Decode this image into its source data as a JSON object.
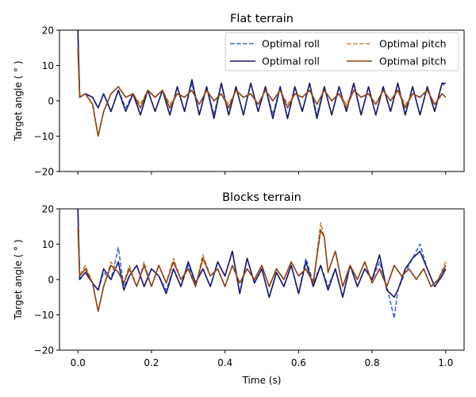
{
  "chart_data": [
    {
      "type": "line",
      "title": "Flat terrain",
      "xlabel": "",
      "ylabel": "Target angle ( ° )",
      "xlim": [
        -0.05,
        1.05
      ],
      "ylim": [
        -20,
        20
      ],
      "xticks": [
        0.0,
        0.2,
        0.4,
        0.6,
        0.8,
        1.0
      ],
      "xtick_labels": [],
      "yticks": [
        -20,
        -10,
        0,
        10,
        20
      ],
      "ytick_labels": [
        "−20",
        "−10",
        "0",
        "10",
        "20"
      ],
      "legend": {
        "position": "top-right",
        "columns": 2
      },
      "series": [
        {
          "name": "Optimal roll",
          "style": "dashed",
          "color": "#4169e1",
          "x": [
            0,
            0.005,
            0.02,
            0.04,
            0.055,
            0.07,
            0.09,
            0.11,
            0.13,
            0.15,
            0.17,
            0.19,
            0.21,
            0.23,
            0.25,
            0.27,
            0.29,
            0.31,
            0.33,
            0.35,
            0.37,
            0.39,
            0.41,
            0.43,
            0.45,
            0.47,
            0.49,
            0.51,
            0.53,
            0.55,
            0.57,
            0.59,
            0.61,
            0.63,
            0.65,
            0.67,
            0.69,
            0.71,
            0.73,
            0.75,
            0.77,
            0.79,
            0.81,
            0.83,
            0.85,
            0.87,
            0.89,
            0.91,
            0.93,
            0.95,
            0.97,
            0.99,
            1.0
          ],
          "y": [
            19,
            1,
            2,
            1,
            -2,
            2,
            -3,
            3,
            -2,
            2,
            -4,
            3,
            -3,
            3,
            -4,
            4,
            -3,
            5,
            -4,
            4,
            -4,
            5,
            -4,
            4,
            -4,
            5,
            -3,
            4,
            -4,
            4,
            -5,
            4,
            -3,
            5,
            -4,
            4,
            -4,
            4,
            -3,
            5,
            -4,
            4,
            -4,
            4,
            -3,
            5,
            -4,
            4,
            -4,
            4,
            -3,
            5,
            4
          ]
        },
        {
          "name": "Optimal roll",
          "style": "solid",
          "color": "#191970",
          "x": [
            0,
            0.005,
            0.02,
            0.04,
            0.055,
            0.07,
            0.09,
            0.11,
            0.13,
            0.15,
            0.17,
            0.19,
            0.21,
            0.23,
            0.25,
            0.27,
            0.29,
            0.31,
            0.33,
            0.35,
            0.37,
            0.39,
            0.41,
            0.43,
            0.45,
            0.47,
            0.49,
            0.51,
            0.53,
            0.55,
            0.57,
            0.59,
            0.61,
            0.63,
            0.65,
            0.67,
            0.69,
            0.71,
            0.73,
            0.75,
            0.77,
            0.79,
            0.81,
            0.83,
            0.85,
            0.87,
            0.89,
            0.91,
            0.93,
            0.95,
            0.97,
            0.99,
            1.0
          ],
          "y": [
            20,
            1,
            2,
            1,
            -2,
            2,
            -3,
            3,
            -3,
            2,
            -4,
            3,
            -3,
            3,
            -4,
            4,
            -3,
            6,
            -4,
            4,
            -5,
            5,
            -4,
            4,
            -4,
            5,
            -3,
            4,
            -5,
            4,
            -5,
            4,
            -3,
            5,
            -5,
            4,
            -4,
            4,
            -3,
            5,
            -4,
            4,
            -4,
            4,
            -3,
            5,
            -4,
            4,
            -4,
            4,
            -3,
            5,
            5
          ]
        },
        {
          "name": "Optimal pitch",
          "style": "dashed",
          "color": "#cd853f",
          "x": [
            0,
            0.005,
            0.02,
            0.04,
            0.055,
            0.07,
            0.09,
            0.11,
            0.13,
            0.15,
            0.17,
            0.19,
            0.21,
            0.23,
            0.25,
            0.27,
            0.29,
            0.31,
            0.33,
            0.35,
            0.37,
            0.39,
            0.41,
            0.43,
            0.45,
            0.47,
            0.49,
            0.51,
            0.53,
            0.55,
            0.57,
            0.59,
            0.61,
            0.63,
            0.65,
            0.67,
            0.69,
            0.71,
            0.73,
            0.75,
            0.77,
            0.79,
            0.81,
            0.83,
            0.85,
            0.87,
            0.89,
            0.91,
            0.93,
            0.95,
            0.97,
            0.99,
            1.0
          ],
          "y": [
            15,
            1,
            2,
            -1,
            -10,
            -3,
            2,
            4,
            1,
            2,
            -1,
            3,
            1,
            3,
            -1,
            2,
            1,
            3,
            -1,
            3,
            0,
            2,
            -1,
            3,
            1,
            2,
            -1,
            3,
            0,
            3,
            -1,
            2,
            1,
            3,
            -1,
            3,
            0,
            2,
            -1,
            3,
            1,
            2,
            -1,
            3,
            0,
            3,
            -1,
            2,
            1,
            3,
            -1,
            2,
            1
          ]
        },
        {
          "name": "Optimal pitch",
          "style": "solid",
          "color": "#8b4513",
          "x": [
            0,
            0.005,
            0.02,
            0.04,
            0.055,
            0.07,
            0.09,
            0.11,
            0.13,
            0.15,
            0.17,
            0.19,
            0.21,
            0.23,
            0.25,
            0.27,
            0.29,
            0.31,
            0.33,
            0.35,
            0.37,
            0.39,
            0.41,
            0.43,
            0.45,
            0.47,
            0.49,
            0.51,
            0.53,
            0.55,
            0.57,
            0.59,
            0.61,
            0.63,
            0.65,
            0.67,
            0.69,
            0.71,
            0.73,
            0.75,
            0.77,
            0.79,
            0.81,
            0.83,
            0.85,
            0.87,
            0.89,
            0.91,
            0.93,
            0.95,
            0.97,
            0.99,
            1.0
          ],
          "y": [
            15,
            1,
            2,
            -1,
            -10,
            -3,
            2,
            4,
            1,
            2,
            -2,
            3,
            1,
            3,
            -2,
            2,
            1,
            3,
            -1,
            3,
            0,
            2,
            -2,
            3,
            1,
            2,
            -1,
            3,
            0,
            3,
            -2,
            2,
            1,
            3,
            -1,
            3,
            0,
            2,
            -2,
            3,
            1,
            2,
            -1,
            3,
            0,
            3,
            -2,
            2,
            1,
            3,
            -1,
            2,
            1
          ]
        }
      ]
    },
    {
      "type": "line",
      "title": "Blocks terrain",
      "xlabel": "Time (s)",
      "ylabel": "Target angle ( ° )",
      "xlim": [
        -0.05,
        1.05
      ],
      "ylim": [
        -20,
        20
      ],
      "xticks": [
        0.0,
        0.2,
        0.4,
        0.6,
        0.8,
        1.0
      ],
      "xtick_labels": [
        "0.0",
        "0.2",
        "0.4",
        "0.6",
        "0.8",
        "1.0"
      ],
      "yticks": [
        -20,
        -10,
        0,
        10,
        20
      ],
      "ytick_labels": [
        "−20",
        "−10",
        "0",
        "10",
        "20"
      ],
      "series": [
        {
          "name": "Optimal roll",
          "style": "dashed",
          "color": "#4169e1",
          "x": [
            0,
            0.005,
            0.02,
            0.04,
            0.055,
            0.07,
            0.09,
            0.11,
            0.125,
            0.14,
            0.16,
            0.18,
            0.2,
            0.22,
            0.24,
            0.26,
            0.28,
            0.3,
            0.32,
            0.34,
            0.36,
            0.38,
            0.4,
            0.42,
            0.44,
            0.46,
            0.48,
            0.5,
            0.52,
            0.54,
            0.56,
            0.58,
            0.6,
            0.62,
            0.64,
            0.66,
            0.68,
            0.7,
            0.72,
            0.74,
            0.76,
            0.78,
            0.8,
            0.82,
            0.84,
            0.86,
            0.87,
            0.89,
            0.91,
            0.93,
            0.95,
            0.97,
            0.99,
            1.0
          ],
          "y": [
            20,
            0,
            2,
            -1,
            -3,
            2,
            0,
            9,
            -2,
            1,
            4,
            -2,
            3,
            1,
            -3,
            3,
            -2,
            4,
            -1,
            3,
            -2,
            5,
            1,
            8,
            -4,
            6,
            -1,
            3,
            -5,
            2,
            -2,
            4,
            -4,
            6,
            -1,
            4,
            -2,
            3,
            -5,
            4,
            -2,
            3,
            0,
            5,
            -2,
            -11,
            -3,
            2,
            6,
            10,
            3,
            -2,
            1,
            4
          ]
        },
        {
          "name": "Optimal roll",
          "style": "solid",
          "color": "#191970",
          "x": [
            0,
            0.005,
            0.02,
            0.04,
            0.055,
            0.07,
            0.09,
            0.11,
            0.125,
            0.14,
            0.16,
            0.18,
            0.2,
            0.22,
            0.24,
            0.26,
            0.28,
            0.3,
            0.32,
            0.34,
            0.36,
            0.38,
            0.4,
            0.42,
            0.44,
            0.46,
            0.48,
            0.5,
            0.52,
            0.54,
            0.56,
            0.58,
            0.6,
            0.62,
            0.64,
            0.66,
            0.68,
            0.7,
            0.72,
            0.74,
            0.76,
            0.78,
            0.8,
            0.82,
            0.84,
            0.86,
            0.87,
            0.89,
            0.91,
            0.93,
            0.95,
            0.97,
            0.99,
            1.0
          ],
          "y": [
            20,
            0,
            2,
            -1,
            -3,
            3,
            0,
            5,
            -3,
            1,
            4,
            -2,
            3,
            1,
            -4,
            3,
            -2,
            5,
            -1,
            3,
            -2,
            5,
            1,
            8,
            -4,
            6,
            -1,
            3,
            -5,
            2,
            -2,
            4,
            -4,
            5,
            -2,
            4,
            -3,
            3,
            -5,
            4,
            -2,
            3,
            0,
            7,
            -3,
            -5,
            -3,
            3,
            6,
            8,
            3,
            -2,
            1,
            3
          ]
        },
        {
          "name": "Optimal pitch",
          "style": "dashed",
          "color": "#cd853f",
          "x": [
            0,
            0.005,
            0.02,
            0.04,
            0.055,
            0.07,
            0.09,
            0.11,
            0.125,
            0.14,
            0.16,
            0.18,
            0.2,
            0.22,
            0.24,
            0.26,
            0.28,
            0.3,
            0.32,
            0.34,
            0.36,
            0.38,
            0.4,
            0.42,
            0.44,
            0.46,
            0.48,
            0.5,
            0.52,
            0.54,
            0.56,
            0.58,
            0.6,
            0.62,
            0.64,
            0.66,
            0.67,
            0.68,
            0.7,
            0.72,
            0.74,
            0.76,
            0.78,
            0.8,
            0.82,
            0.84,
            0.86,
            0.88,
            0.9,
            0.92,
            0.94,
            0.96,
            0.98,
            1.0
          ],
          "y": [
            15,
            1,
            4,
            -1,
            -9,
            -2,
            5,
            2,
            -1,
            4,
            -2,
            5,
            -2,
            4,
            -1,
            6,
            0,
            3,
            -2,
            7,
            1,
            3,
            -2,
            4,
            -1,
            3,
            0,
            4,
            -2,
            3,
            0,
            5,
            1,
            3,
            -1,
            16,
            12,
            2,
            8,
            -2,
            4,
            0,
            5,
            -1,
            3,
            -2,
            4,
            1,
            3,
            0,
            3,
            -2,
            0,
            5
          ]
        },
        {
          "name": "Optimal pitch",
          "style": "solid",
          "color": "#8b4513",
          "x": [
            0,
            0.005,
            0.02,
            0.04,
            0.055,
            0.07,
            0.09,
            0.11,
            0.125,
            0.14,
            0.16,
            0.18,
            0.2,
            0.22,
            0.24,
            0.26,
            0.28,
            0.3,
            0.32,
            0.34,
            0.36,
            0.38,
            0.4,
            0.42,
            0.44,
            0.46,
            0.48,
            0.5,
            0.52,
            0.54,
            0.56,
            0.58,
            0.6,
            0.62,
            0.64,
            0.66,
            0.67,
            0.68,
            0.7,
            0.72,
            0.74,
            0.76,
            0.78,
            0.8,
            0.82,
            0.84,
            0.86,
            0.88,
            0.9,
            0.92,
            0.94,
            0.96,
            0.98,
            1.0
          ],
          "y": [
            15,
            1,
            3,
            -1,
            -9,
            -2,
            4,
            2,
            -1,
            3,
            -2,
            4,
            -2,
            4,
            -1,
            5,
            0,
            3,
            -2,
            6,
            1,
            3,
            -2,
            4,
            -1,
            3,
            0,
            4,
            -2,
            3,
            0,
            5,
            1,
            3,
            -1,
            14,
            12,
            2,
            8,
            -2,
            4,
            0,
            5,
            -1,
            3,
            -2,
            4,
            1,
            3,
            0,
            3,
            -2,
            0,
            4
          ]
        }
      ]
    }
  ]
}
